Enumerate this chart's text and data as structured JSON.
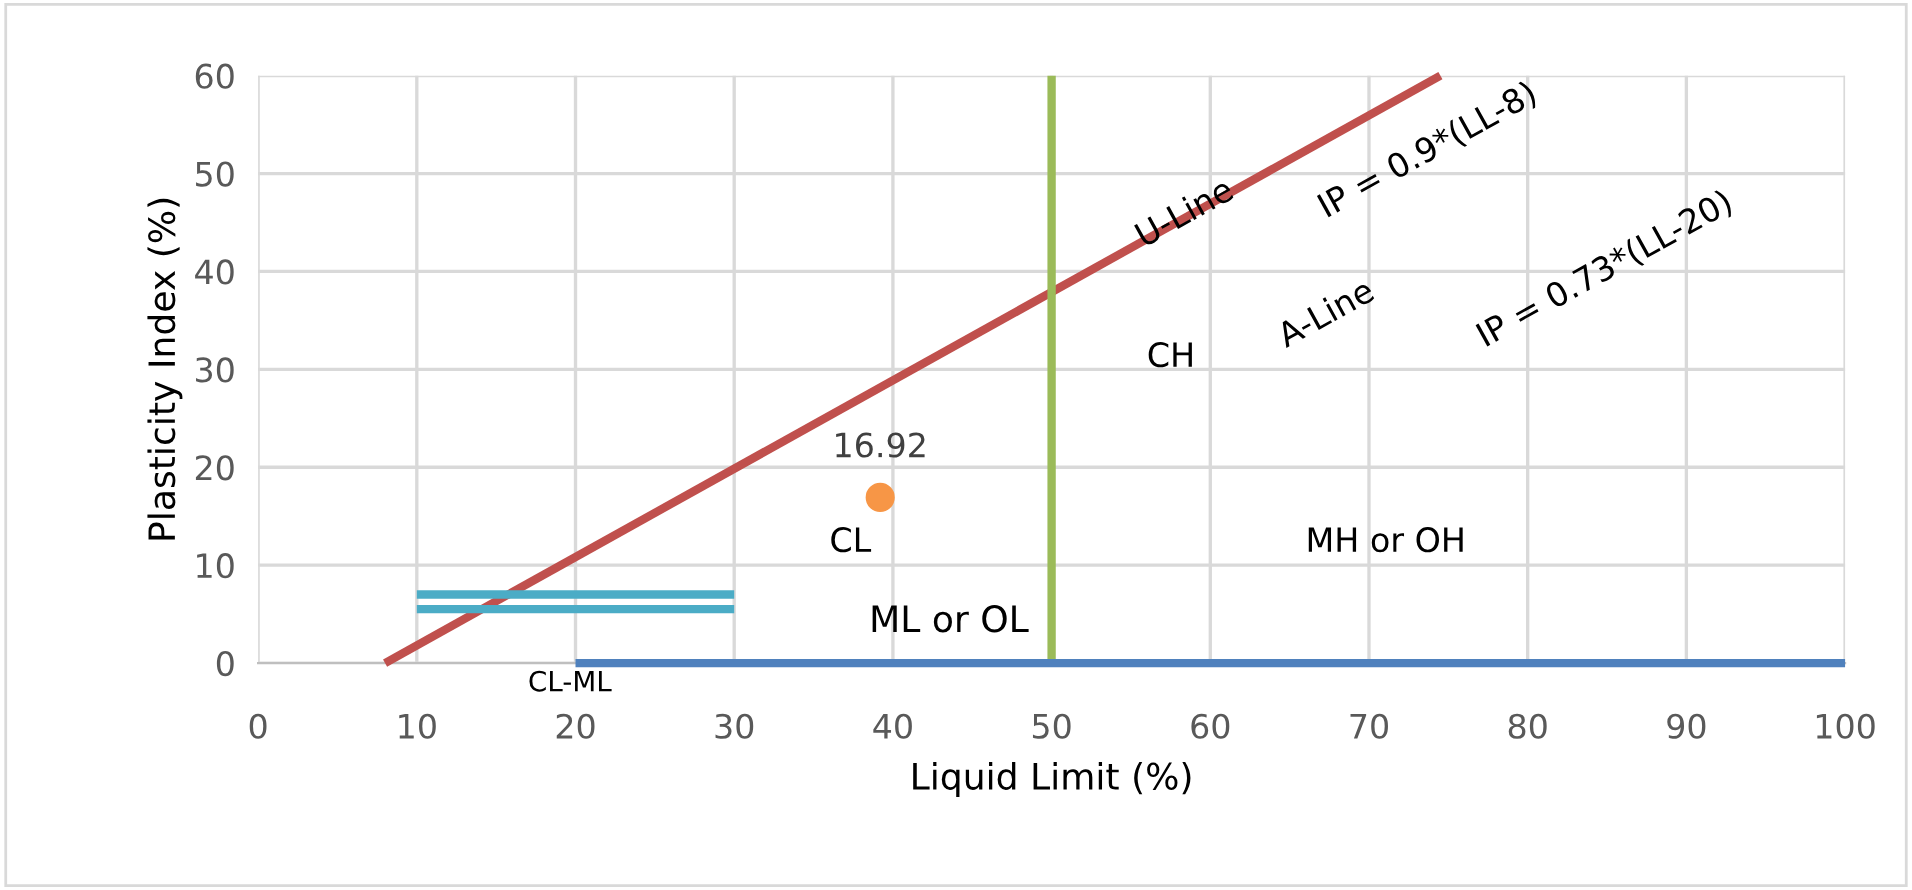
{
  "chart_data": {
    "type": "line",
    "xlabel": "Liquid Limit (%)",
    "ylabel": "Plasticity Index (%)",
    "xlim": [
      0,
      100
    ],
    "xticks": [
      0,
      10,
      20,
      30,
      40,
      50,
      60,
      70,
      80,
      90,
      100
    ],
    "ylim": [
      0,
      60
    ],
    "yticks": [
      0,
      10,
      20,
      30,
      40,
      50,
      60
    ],
    "grid": true,
    "series": [
      {
        "color": "#c0504d",
        "x": [
          8,
          74.5
        ],
        "values": [
          0,
          60
        ]
      },
      {
        "color": "#9bbb59",
        "x": [
          50,
          50
        ],
        "values": [
          0,
          60
        ]
      },
      {
        "color": "#4f81bd",
        "x": [
          20,
          100
        ],
        "values": [
          0,
          0
        ]
      },
      {
        "color": "#4bacc6",
        "x": [
          10,
          30
        ],
        "values": [
          7,
          7
        ]
      },
      {
        "color": "#4bacc6",
        "x": [
          10,
          30
        ],
        "values": [
          5.5,
          5.5
        ]
      },
      {
        "type": "scatter",
        "color": "#f79646",
        "x": [
          39.2
        ],
        "values": [
          16.92
        ],
        "value_labels": [
          "16.92"
        ],
        "marker": "circle"
      }
    ],
    "annotations": [
      "CL",
      "CL-ML",
      "ML or OL",
      "MH or OH",
      "CH",
      "U-Line",
      "IP = 0.9*(LL-8)",
      "A-Line",
      "IP = 0.73*(LL-20)"
    ]
  }
}
